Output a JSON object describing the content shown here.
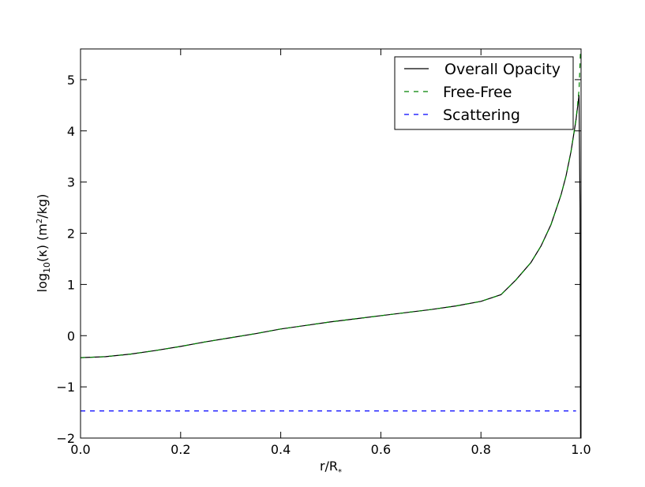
{
  "chart_data": {
    "type": "line",
    "xlabel": {
      "base": "r/R",
      "sub": "*"
    },
    "ylabel": {
      "pre": "log",
      "sub": "10",
      "mid": "(κ) (m",
      "sup": "2",
      "post": "/kg)"
    },
    "xlim": [
      0.0,
      1.0
    ],
    "ylim": [
      -2.0,
      5.6
    ],
    "xticks": [
      0.0,
      0.2,
      0.4,
      0.6,
      0.8,
      1.0
    ],
    "xtick_labels": [
      "0.0",
      "0.2",
      "0.4",
      "0.6",
      "0.8",
      "1.0"
    ],
    "yticks": [
      -2,
      -1,
      0,
      1,
      2,
      3,
      4,
      5
    ],
    "ytick_labels": [
      "−2",
      "−1",
      "0",
      "1",
      "2",
      "3",
      "4",
      "5"
    ],
    "grid": false,
    "legend_position": "top-right",
    "series": [
      {
        "name": "Overall Opacity",
        "color": "#000000",
        "style": "solid",
        "points": [
          [
            0.0,
            -0.43
          ],
          [
            0.05,
            -0.41
          ],
          [
            0.1,
            -0.36
          ],
          [
            0.15,
            -0.29
          ],
          [
            0.2,
            -0.21
          ],
          [
            0.25,
            -0.12
          ],
          [
            0.3,
            -0.04
          ],
          [
            0.35,
            0.04
          ],
          [
            0.4,
            0.13
          ],
          [
            0.45,
            0.2
          ],
          [
            0.5,
            0.27
          ],
          [
            0.55,
            0.33
          ],
          [
            0.6,
            0.39
          ],
          [
            0.65,
            0.45
          ],
          [
            0.7,
            0.51
          ],
          [
            0.75,
            0.58
          ],
          [
            0.8,
            0.67
          ],
          [
            0.84,
            0.8
          ],
          [
            0.87,
            1.09
          ],
          [
            0.9,
            1.43
          ],
          [
            0.92,
            1.75
          ],
          [
            0.94,
            2.17
          ],
          [
            0.96,
            2.75
          ],
          [
            0.97,
            3.12
          ],
          [
            0.98,
            3.6
          ],
          [
            0.99,
            4.22
          ],
          [
            0.996,
            4.7
          ],
          [
            0.998,
            2.5
          ],
          [
            0.999,
            -2.0
          ]
        ]
      },
      {
        "name": "Free-Free",
        "color": "#008000",
        "style": "dashed",
        "points": [
          [
            0.0,
            -0.43
          ],
          [
            0.05,
            -0.41
          ],
          [
            0.1,
            -0.36
          ],
          [
            0.15,
            -0.29
          ],
          [
            0.2,
            -0.21
          ],
          [
            0.25,
            -0.12
          ],
          [
            0.3,
            -0.04
          ],
          [
            0.35,
            0.04
          ],
          [
            0.4,
            0.13
          ],
          [
            0.45,
            0.2
          ],
          [
            0.5,
            0.27
          ],
          [
            0.55,
            0.33
          ],
          [
            0.6,
            0.39
          ],
          [
            0.65,
            0.45
          ],
          [
            0.7,
            0.51
          ],
          [
            0.75,
            0.58
          ],
          [
            0.8,
            0.67
          ],
          [
            0.84,
            0.8
          ],
          [
            0.87,
            1.09
          ],
          [
            0.9,
            1.43
          ],
          [
            0.92,
            1.75
          ],
          [
            0.94,
            2.17
          ],
          [
            0.96,
            2.75
          ],
          [
            0.97,
            3.12
          ],
          [
            0.98,
            3.6
          ],
          [
            0.99,
            4.22
          ],
          [
            0.996,
            4.8
          ],
          [
            0.999,
            5.6
          ]
        ]
      },
      {
        "name": "Scattering",
        "color": "#0000ff",
        "style": "dashed",
        "points": [
          [
            0.0,
            -1.47
          ],
          [
            0.99,
            -1.47
          ]
        ]
      }
    ]
  }
}
